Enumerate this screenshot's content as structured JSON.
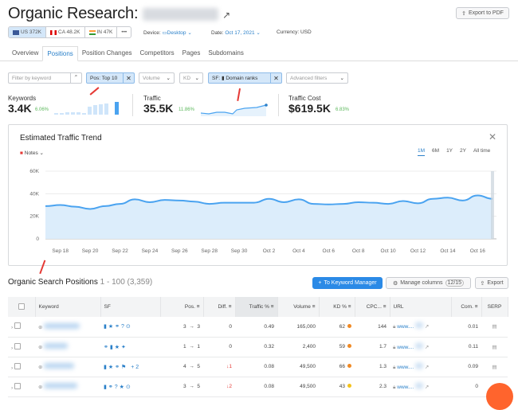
{
  "header": {
    "title": "Organic Research:",
    "export_pdf": "Export to PDF"
  },
  "databases": [
    {
      "flag": "US",
      "label": "US 372K"
    },
    {
      "flag": "CA",
      "label": "CA 48.2K"
    },
    {
      "flag": "IN",
      "label": "IN 47K"
    },
    {
      "label": "•••"
    }
  ],
  "meta": {
    "device_label": "Device:",
    "device": "Desktop",
    "date_label": "Date:",
    "date": "Oct 17, 2021",
    "currency": "Currency: USD"
  },
  "tabs": [
    "Overview",
    "Positions",
    "Position Changes",
    "Competitors",
    "Pages",
    "Subdomains"
  ],
  "filters": {
    "keyword_placeholder": "Filter by keyword",
    "pos": "Pos: Top 10",
    "volume": "Volume",
    "kd": "KD",
    "sf": "SF:",
    "sf_value": "Domain ranks",
    "advanced": "Advanced filters"
  },
  "summary": {
    "keywords": {
      "label": "Keywords",
      "value": "3.4K",
      "change": "6.06%"
    },
    "traffic": {
      "label": "Traffic",
      "value": "35.5K",
      "change": "11.86%"
    },
    "cost": {
      "label": "Traffic Cost",
      "value": "$619.5K",
      "change": "6.83%"
    }
  },
  "trend": {
    "title": "Estimated Traffic Trend",
    "notes": "Notes",
    "ranges": [
      "1M",
      "6M",
      "1Y",
      "2Y",
      "All time"
    ],
    "active_range": "1M"
  },
  "chart_data": {
    "type": "area",
    "title": "Estimated Traffic Trend",
    "ylim": [
      0,
      60000
    ],
    "yticks": [
      "0",
      "20K",
      "40K",
      "60K"
    ],
    "xticks": [
      "Sep 18",
      "Sep 20",
      "Sep 22",
      "Sep 24",
      "Sep 26",
      "Sep 28",
      "Sep 30",
      "Oct 2",
      "Oct 4",
      "Oct 6",
      "Oct 8",
      "Oct 10",
      "Oct 12",
      "Oct 14",
      "Oct 16"
    ],
    "x": [
      "Sep 17",
      "Sep 18",
      "Sep 19",
      "Sep 20",
      "Sep 21",
      "Sep 22",
      "Sep 23",
      "Sep 24",
      "Sep 25",
      "Sep 26",
      "Sep 27",
      "Sep 28",
      "Sep 29",
      "Sep 30",
      "Oct 1",
      "Oct 2",
      "Oct 3",
      "Oct 4",
      "Oct 5",
      "Oct 6",
      "Oct 7",
      "Oct 8",
      "Oct 9",
      "Oct 10",
      "Oct 11",
      "Oct 12",
      "Oct 13",
      "Oct 14",
      "Oct 15",
      "Oct 16",
      "Oct 17"
    ],
    "values": [
      29000,
      30000,
      28500,
      26500,
      29000,
      31000,
      35000,
      32500,
      34500,
      34000,
      33000,
      31000,
      32000,
      32000,
      32000,
      35500,
      32500,
      35000,
      31000,
      30500,
      31000,
      32500,
      32000,
      31000,
      33500,
      31500,
      35500,
      36500,
      34000,
      38500,
      35500
    ],
    "color": "#4aa3f0",
    "grid": true
  },
  "positions": {
    "title": "Organic Search Positions",
    "range": "1 - 100 (3,359)",
    "to_km": "To Keyword Manager",
    "manage": "Manage columns",
    "manage_count": "12/15",
    "export": "Export",
    "columns": [
      "Keyword",
      "SF",
      "Pos.",
      "Diff.",
      "Traffic %",
      "Volume",
      "KD %",
      "CPC...",
      "URL",
      "Com.",
      "SERP"
    ],
    "rows": [
      {
        "sf": "▮★⚭?⊙",
        "pos_from": "3",
        "pos_to": "3",
        "diff": "0",
        "traffic": "0.49",
        "volume": "165,000",
        "kd": "62",
        "kd_color": "#f08a24",
        "cpc": "144",
        "url": "www....",
        "com": "0.01"
      },
      {
        "sf": "⚭▮★✦",
        "pos_from": "1",
        "pos_to": "1",
        "diff": "0",
        "traffic": "0.32",
        "volume": "2,400",
        "kd": "59",
        "kd_color": "#f08a24",
        "cpc": "1.7",
        "url": "www....",
        "com": "0.11"
      },
      {
        "sf": "▮★⚭⚑ +2",
        "pos_from": "4",
        "pos_to": "5",
        "diff": "1",
        "traffic": "0.08",
        "volume": "49,500",
        "kd": "66",
        "kd_color": "#f08a24",
        "cpc": "1.3",
        "url": "www....",
        "com": "0.09"
      },
      {
        "sf": "▮⚭?★⊙",
        "pos_from": "3",
        "pos_to": "5",
        "diff": "2",
        "traffic": "0.08",
        "volume": "49,500",
        "kd": "43",
        "kd_color": "#f5c21b",
        "cpc": "2.3",
        "url": "www....",
        "com": "0"
      }
    ]
  }
}
